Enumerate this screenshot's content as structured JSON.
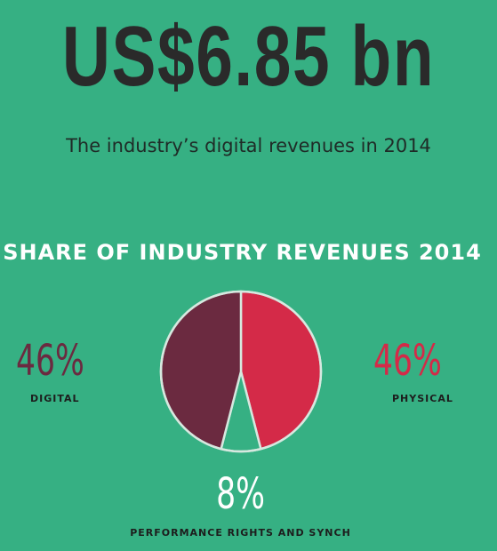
{
  "headline": {
    "value": "US$6.85 bn",
    "caption": "The industry’s digital revenues in 2014"
  },
  "colors": {
    "background": "#36b083",
    "digital": "#6b2a40",
    "physical": "#d42a48",
    "performance": "#36b083",
    "outline": "#d6e8df"
  },
  "chart_data": {
    "type": "pie",
    "title": "SHARE OF INDUSTRY REVENUES 2014",
    "slices": [
      {
        "label": "PHYSICAL",
        "value": 46,
        "display": "46%",
        "color": "#d42a48"
      },
      {
        "label": "PERFORMANCE RIGHTS AND SYNCH",
        "value": 8,
        "display": "8%",
        "color": "#36b083"
      },
      {
        "label": "DIGITAL",
        "value": 46,
        "display": "46%",
        "color": "#6b2a40"
      }
    ]
  }
}
